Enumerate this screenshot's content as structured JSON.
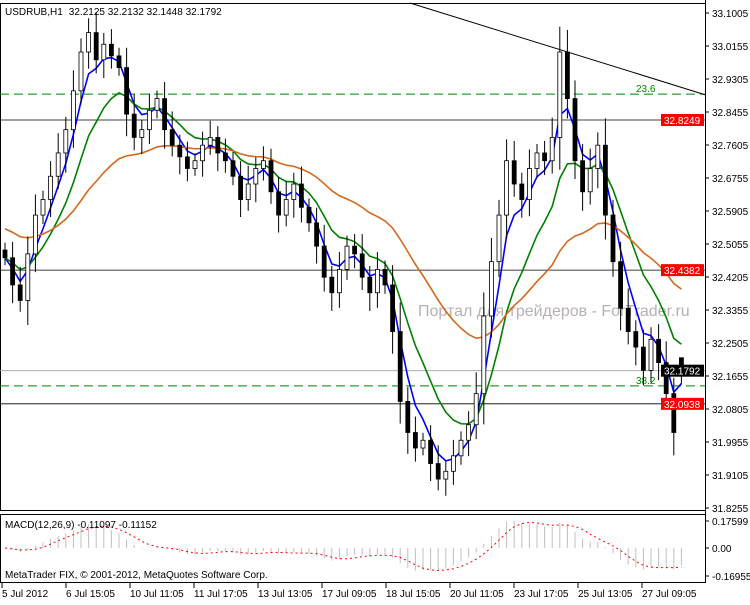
{
  "header": {
    "symbol": "USDRUB,H1",
    "ohlc": "32.2125 32.2132 32.1448 32.1792"
  },
  "watermark": "Портал для трейдеров - ForTrader.ru",
  "copyright": "MetaTrader FIX, © 2001-2012, MetaQuotes Software Corp.",
  "colors": {
    "fast_ma": "#0000ff",
    "mid_ma": "#008000",
    "slow_ma": "#d2691e",
    "level_line": "#ff0000",
    "fibo": "#008000",
    "macd_hist": "#c0c0c0",
    "macd_signal": "#ff0000"
  },
  "chart_data": {
    "type": "candlestick",
    "ylim": [
      31.8255,
      33.1005
    ],
    "y_ticks": [
      "33.1005",
      "33.0155",
      "32.9305",
      "32.8455",
      "32.7605",
      "32.6755",
      "32.5905",
      "32.5055",
      "32.4205",
      "32.3355",
      "32.2505",
      "32.1655",
      "32.0805",
      "31.9955",
      "31.9105",
      "31.8255"
    ],
    "x_ticks": [
      "5 Jul 2012",
      "6 Jul 15:05",
      "10 Jul 11:05",
      "11 Jul 17:05",
      "13 Jul 13:05",
      "17 Jul 09:05",
      "18 Jul 15:05",
      "20 Jul 11:05",
      "23 Jul 17:05",
      "25 Jul 13:05",
      "27 Jul 09:05"
    ],
    "closes": [
      32.47,
      32.4,
      32.36,
      32.48,
      32.58,
      32.62,
      32.68,
      32.74,
      32.8,
      32.9,
      33.0,
      33.05,
      32.98,
      33.02,
      32.99,
      32.96,
      32.84,
      32.78,
      32.8,
      32.85,
      32.88,
      32.8,
      32.76,
      32.73,
      32.7,
      32.72,
      32.76,
      32.78,
      32.74,
      32.72,
      32.68,
      32.62,
      32.66,
      32.7,
      32.72,
      32.64,
      32.58,
      32.62,
      32.66,
      32.6,
      32.56,
      32.5,
      32.42,
      32.38,
      32.44,
      32.5,
      32.48,
      32.42,
      32.38,
      32.44,
      32.4,
      32.28,
      32.1,
      32.02,
      31.98,
      32.0,
      31.94,
      31.9,
      31.92,
      31.96,
      32.0,
      32.04,
      32.12,
      32.32,
      32.46,
      32.58,
      32.72,
      32.66,
      32.62,
      32.7,
      32.74,
      32.72,
      32.78,
      33.0,
      32.88,
      32.72,
      32.64,
      32.7,
      32.76,
      32.58,
      32.46,
      32.34,
      32.28,
      32.24,
      32.18,
      32.26,
      32.2,
      32.12,
      32.02,
      32.1792
    ],
    "last_candle": {
      "open": 32.2125,
      "high": 32.2132,
      "low": 32.1448,
      "close": 32.1792
    },
    "price_levels": [
      {
        "value": 32.8249,
        "label": "32.8249",
        "color": "#ff0000"
      },
      {
        "value": 32.4382,
        "label": "32.4382",
        "color": "#ff0000"
      },
      {
        "value": 32.0938,
        "label": "32.0938",
        "color": "#ff0000"
      },
      {
        "value": 32.1792,
        "label": "32.1792",
        "color": "#000000"
      }
    ],
    "fibo_levels": [
      {
        "value": 32.8916,
        "label": "23.6"
      },
      {
        "value": 32.14,
        "label": "38.2"
      }
    ],
    "trendline": {
      "from_bar": 60,
      "from_price": 33.1005,
      "to_bar": 104,
      "to_price": 32.89
    },
    "moving_averages": [
      {
        "color": "#0000ff",
        "period": 4
      },
      {
        "color": "#008000",
        "period": 10
      },
      {
        "color": "#d2691e",
        "period": 30
      }
    ],
    "macd": {
      "label": "MACD(12,26,9) -0.11097 -0.11152",
      "y_ticks": [
        "0.17599",
        "0.00",
        "-0.16955"
      ],
      "ylim": [
        -0.16955,
        0.17599
      ]
    }
  }
}
